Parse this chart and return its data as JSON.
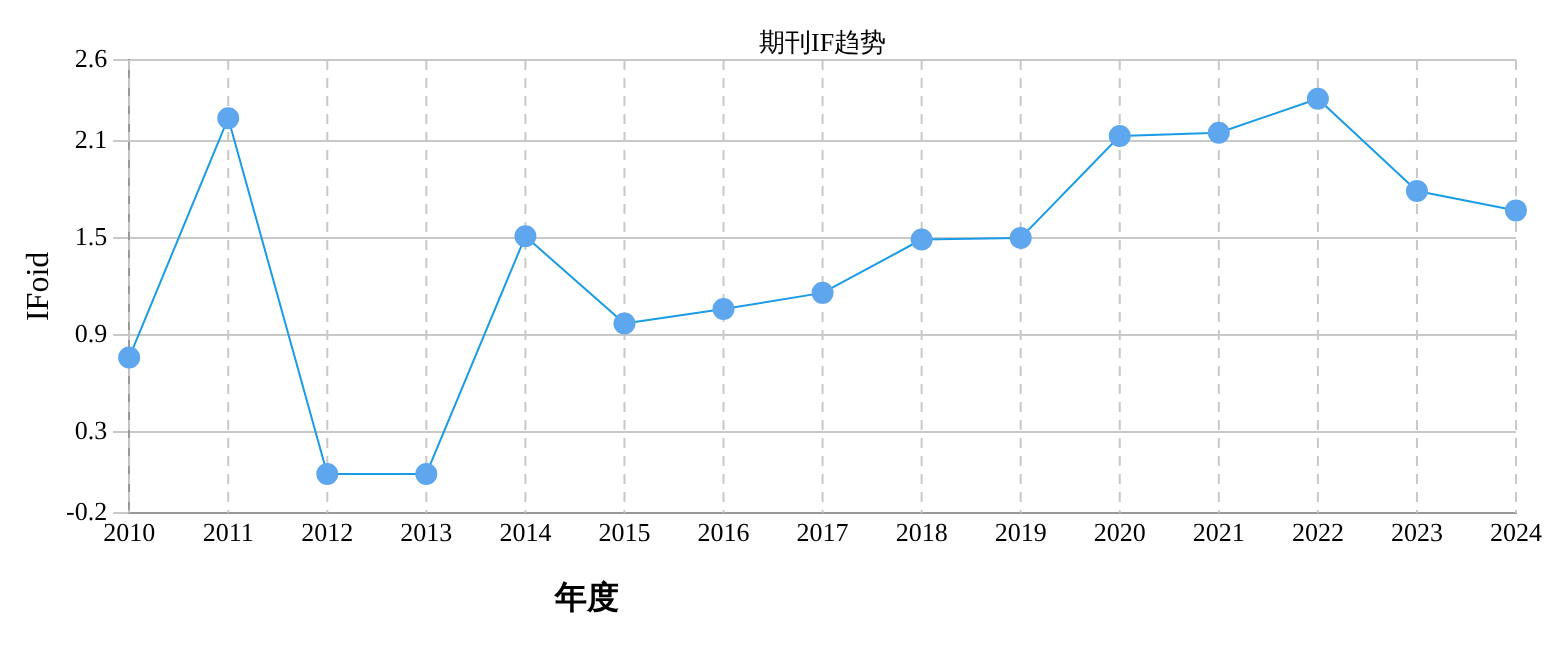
{
  "chart_data": {
    "type": "line",
    "title": "期刊IF趋势",
    "xlabel": "年度",
    "ylabel": "IFoid",
    "categories": [
      "2010",
      "2011",
      "2012",
      "2013",
      "2014",
      "2015",
      "2016",
      "2017",
      "2018",
      "2019",
      "2020",
      "2021",
      "2022",
      "2023",
      "2024"
    ],
    "series": [
      {
        "color": "#1a9be6",
        "values": [
          0.76,
          2.24,
          0.04,
          0.04,
          1.51,
          0.97,
          1.06,
          1.16,
          1.49,
          1.5,
          2.13,
          2.15,
          2.36,
          1.79,
          1.67
        ]
      }
    ],
    "ylim": [
      -0.2,
      2.6
    ],
    "yticks": [
      -0.2,
      0.3,
      0.9,
      1.5,
      2.1,
      2.6
    ],
    "grid": true,
    "legend": false,
    "marker": "circle",
    "line_style": "solid"
  }
}
